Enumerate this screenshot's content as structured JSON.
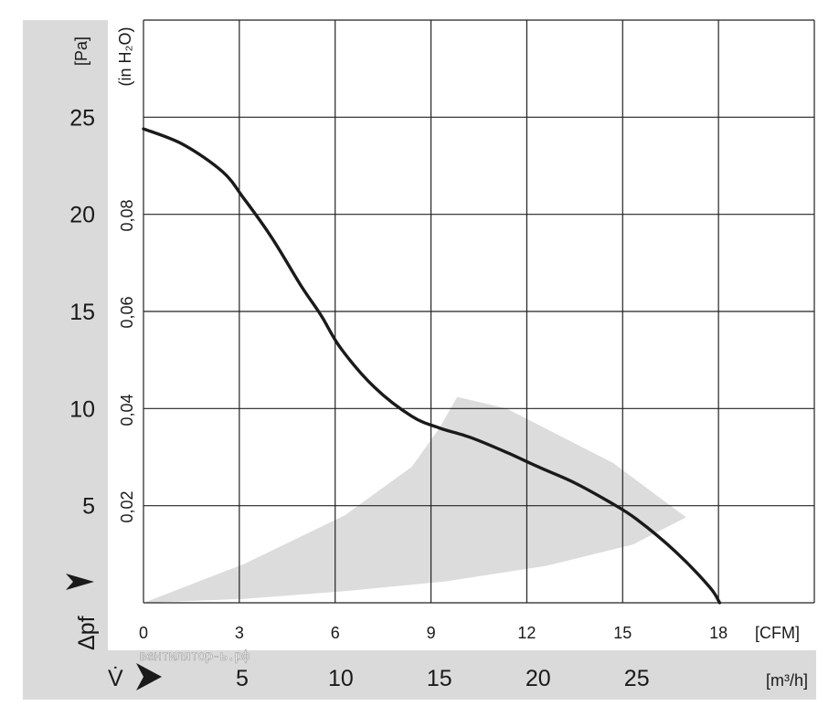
{
  "chart_data": {
    "type": "line",
    "x_unit": "[m³/h]",
    "x_unit_secondary": "[CFM]",
    "y_unit": "[Pa]",
    "y_unit_secondary": "(in H₂O)",
    "xlabel_symbol": "V̇",
    "ylabel_symbol": "Δpf",
    "xlim": [
      0,
      34
    ],
    "ylim": [
      0,
      30
    ],
    "x_ticks": [
      5,
      10,
      15,
      20,
      25
    ],
    "x_ticks_secondary": [
      "0",
      "3",
      "6",
      "9",
      "12",
      "15",
      "18"
    ],
    "y_ticks": [
      5,
      10,
      15,
      20,
      25
    ],
    "y_ticks_secondary": [
      "0,02",
      "0,04",
      "0,06",
      "0,08"
    ],
    "grid": true,
    "series": [
      {
        "x": [
          0,
          2,
          4,
          5.1,
          6.5,
          8,
          9,
          10,
          11.7,
          13.6,
          15,
          16.6,
          18.5,
          20,
          21.8,
          23.6,
          25,
          27,
          28.7,
          29.2
        ],
        "y": [
          24.4,
          23.6,
          22.2,
          20.8,
          18.8,
          16.3,
          14.8,
          13.1,
          11.1,
          9.6,
          9.0,
          8.5,
          7.7,
          7.0,
          6.2,
          5.2,
          4.3,
          2.6,
          0.8,
          0
        ]
      }
    ],
    "operating_region": {
      "x": [
        0,
        5.1,
        10.2,
        13.6,
        15.0,
        15.9,
        18.4,
        23.8,
        27.5,
        24.8,
        20.4,
        15.3,
        10.2,
        5.1,
        0
      ],
      "y": [
        0,
        2.0,
        4.5,
        7.0,
        9.0,
        10.6,
        10.0,
        7.2,
        4.4,
        3.0,
        1.9,
        1.1,
        0.6,
        0.2,
        0
      ]
    }
  },
  "watermark": "вентилятор-ь.рф",
  "colors": {
    "curve": "#1a1a1a",
    "grid": "#222222",
    "region": "#dcdcdc",
    "band": "#dadada"
  }
}
